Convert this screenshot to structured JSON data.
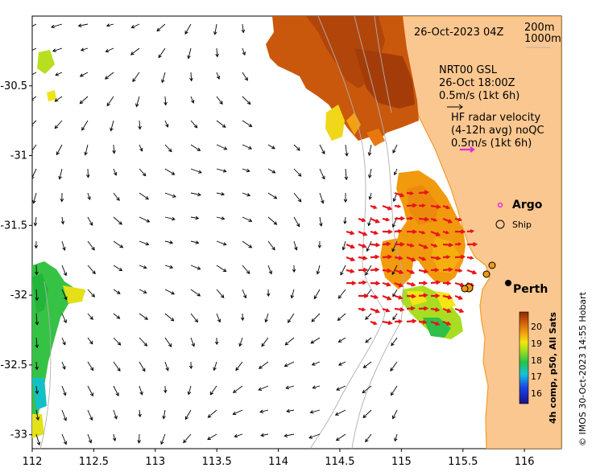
{
  "map": {
    "date_label": "26-Oct-2023 04Z",
    "contour_legend": [
      "200m",
      "1000m"
    ],
    "x_ticks": [
      "112",
      "112.5",
      "113",
      "113.5",
      "114",
      "114.5",
      "115",
      "115.5",
      "116"
    ],
    "y_ticks": [
      "-30.5",
      "-31",
      "-31.5",
      "-32",
      "-32.5",
      "-33"
    ],
    "x_range": [
      112,
      116.3
    ],
    "y_range": [
      -30.0,
      -33.1
    ]
  },
  "model_legend": {
    "line1": "NRT00 GSL",
    "line2": "26-Oct 18:00Z",
    "line3": "0.5m/s (1kt 6h)"
  },
  "radar_legend": {
    "line1": "HF radar velocity",
    "line2": "(4-12h avg) noQC",
    "line3": "0.5m/s (1kt 6h)"
  },
  "markers": {
    "argo_label": "Argo",
    "ship_label": "Ship",
    "city_label": "Perth"
  },
  "colorbar": {
    "title": "4h comp, p50, All Sats",
    "ticks": [
      "20",
      "19",
      "18",
      "17",
      "16"
    ],
    "range": [
      15.5,
      21
    ]
  },
  "credit": "© IMOS 30-Oct-2023 14:55 Hobart",
  "colors": {
    "land": "#fbc790",
    "coast": "#f29d2b",
    "radar_arrow": "#e8141b",
    "argo": "#e22be0",
    "contour": "#b0b0b0"
  }
}
